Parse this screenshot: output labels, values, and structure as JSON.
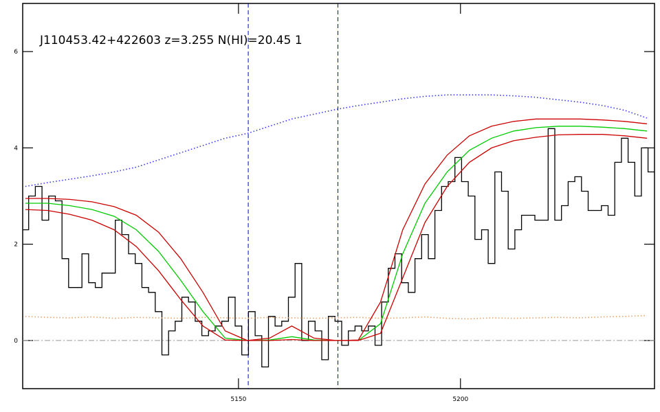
{
  "chart_data": {
    "type": "line",
    "title": "J110453.42+422603 z=3.255 N(HI)=20.45 1",
    "xlim": [
      5101.4,
      5243.7
    ],
    "ylim": [
      -1,
      7
    ],
    "xticks": [
      5150,
      5200
    ],
    "yticks": [
      0,
      2,
      4,
      6
    ],
    "vlines": [
      5152.2,
      5172.4
    ],
    "vline_color": "#0000cc",
    "hline": 0,
    "hline_color": "#999999",
    "series": [
      {
        "name": "flux",
        "color": "#000000",
        "style": "steps",
        "x": [
          5102.0,
          5103.5,
          5105.0,
          5106.5,
          5108.0,
          5109.5,
          5111.0,
          5112.5,
          5114.0,
          5115.5,
          5117.0,
          5118.5,
          5120.0,
          5121.5,
          5123.0,
          5124.5,
          5126.0,
          5127.5,
          5129.0,
          5130.5,
          5132.0,
          5133.5,
          5135.0,
          5136.5,
          5138.0,
          5139.5,
          5141.0,
          5142.5,
          5144.0,
          5145.5,
          5147.0,
          5148.5,
          5150.0,
          5151.5,
          5153.0,
          5154.5,
          5156.0,
          5157.5,
          5159.0,
          5160.5,
          5162.0,
          5163.5,
          5165.0,
          5166.5,
          5168.0,
          5169.5,
          5171.0,
          5172.5,
          5174.0,
          5175.5,
          5177.0,
          5178.5,
          5180.0,
          5181.5,
          5183.0,
          5184.5,
          5186.0,
          5187.5,
          5189.0,
          5190.5,
          5192.0,
          5193.5,
          5195.0,
          5196.5,
          5198.0,
          5199.5,
          5201.0,
          5202.5,
          5204.0,
          5205.5,
          5207.0,
          5208.5,
          5210.0,
          5211.5,
          5213.0,
          5214.5,
          5216.0,
          5217.5,
          5219.0,
          5220.5,
          5222.0,
          5223.5,
          5225.0,
          5226.5,
          5228.0,
          5229.5,
          5231.0,
          5232.5,
          5234.0,
          5235.5,
          5237.0,
          5238.5,
          5240.0,
          5241.5,
          5243.0
        ],
        "values": [
          2.3,
          3.0,
          3.2,
          2.5,
          3.0,
          2.9,
          1.7,
          1.1,
          1.1,
          1.8,
          1.2,
          1.1,
          1.4,
          1.4,
          2.5,
          2.2,
          1.8,
          1.6,
          1.1,
          1.0,
          0.6,
          -0.3,
          0.2,
          0.4,
          0.9,
          0.8,
          0.4,
          0.1,
          0.2,
          0.3,
          0.4,
          0.9,
          0.3,
          -0.3,
          0.6,
          0.1,
          -0.55,
          0.5,
          0.3,
          0.4,
          0.9,
          1.6,
          0.0,
          0.4,
          0.2,
          -0.4,
          0.5,
          0.4,
          -0.1,
          0.2,
          0.3,
          0.2,
          0.3,
          -0.1,
          0.8,
          1.5,
          1.8,
          1.2,
          1.0,
          1.7,
          2.2,
          1.7,
          2.7,
          3.2,
          3.3,
          3.8,
          3.3,
          3.0,
          2.1,
          2.3,
          1.6,
          3.5,
          3.1,
          1.9,
          2.3,
          2.6,
          2.6,
          2.5,
          2.5,
          4.4,
          2.5,
          2.8,
          3.3,
          3.4,
          3.1,
          2.7,
          2.7,
          2.8,
          2.6,
          3.7,
          4.2,
          3.7,
          3.0,
          4.0,
          3.5
        ]
      },
      {
        "name": "continuum",
        "color": "#3333ff",
        "style": "dotted",
        "x": [
          5102,
          5107,
          5112,
          5117,
          5122,
          5127,
          5132,
          5137,
          5142,
          5147,
          5152,
          5157,
          5162,
          5167,
          5172,
          5177,
          5182,
          5187,
          5192,
          5197,
          5202,
          5207,
          5212,
          5217,
          5222,
          5227,
          5232,
          5237,
          5242
        ],
        "values": [
          3.2,
          3.28,
          3.35,
          3.42,
          3.5,
          3.6,
          3.75,
          3.9,
          4.05,
          4.2,
          4.3,
          4.45,
          4.6,
          4.7,
          4.8,
          4.88,
          4.95,
          5.02,
          5.07,
          5.1,
          5.1,
          5.1,
          5.08,
          5.05,
          5.0,
          4.95,
          4.88,
          4.78,
          4.62
        ]
      },
      {
        "name": "error",
        "color": "#e8a060",
        "style": "dotted",
        "x": [
          5102,
          5107,
          5112,
          5117,
          5122,
          5127,
          5132,
          5137,
          5142,
          5147,
          5152,
          5157,
          5162,
          5167,
          5172,
          5177,
          5182,
          5187,
          5192,
          5197,
          5202,
          5207,
          5212,
          5217,
          5222,
          5227,
          5232,
          5237,
          5242
        ],
        "values": [
          0.5,
          0.48,
          0.47,
          0.49,
          0.46,
          0.48,
          0.47,
          0.46,
          0.48,
          0.47,
          0.46,
          0.48,
          0.47,
          0.46,
          0.47,
          0.48,
          0.46,
          0.47,
          0.49,
          0.46,
          0.45,
          0.47,
          0.46,
          0.47,
          0.48,
          0.47,
          0.49,
          0.5,
          0.52
        ]
      },
      {
        "name": "model",
        "color": "#00cc00",
        "style": "solid",
        "x": [
          5102,
          5107,
          5112,
          5117,
          5122,
          5127,
          5132,
          5137,
          5142,
          5147,
          5152,
          5157,
          5162,
          5167,
          5172,
          5177,
          5182,
          5187,
          5192,
          5197,
          5202,
          5207,
          5212,
          5217,
          5222,
          5227,
          5232,
          5237,
          5242
        ],
        "values": [
          2.85,
          2.85,
          2.8,
          2.72,
          2.58,
          2.3,
          1.85,
          1.25,
          0.6,
          0.05,
          0,
          0.01,
          0.08,
          0.01,
          0,
          0,
          0.35,
          1.8,
          2.85,
          3.5,
          3.95,
          4.2,
          4.35,
          4.42,
          4.45,
          4.45,
          4.43,
          4.4,
          4.35
        ]
      },
      {
        "name": "model upper",
        "color": "#cc0000",
        "style": "solid",
        "x": [
          5102,
          5107,
          5112,
          5117,
          5122,
          5127,
          5132,
          5137,
          5142,
          5147,
          5152,
          5157,
          5162,
          5167,
          5172,
          5177,
          5182,
          5187,
          5192,
          5197,
          5202,
          5207,
          5212,
          5217,
          5222,
          5227,
          5232,
          5237,
          5242
        ],
        "values": [
          2.95,
          2.95,
          2.93,
          2.88,
          2.78,
          2.6,
          2.25,
          1.7,
          1.0,
          0.2,
          0,
          0.05,
          0.3,
          0.05,
          0,
          0.01,
          0.8,
          2.3,
          3.25,
          3.85,
          4.25,
          4.45,
          4.55,
          4.6,
          4.6,
          4.6,
          4.58,
          4.55,
          4.5
        ]
      },
      {
        "name": "model lower",
        "color": "#cc0000",
        "style": "solid",
        "x": [
          5102,
          5107,
          5112,
          5117,
          5122,
          5127,
          5132,
          5137,
          5142,
          5147,
          5152,
          5157,
          5162,
          5167,
          5172,
          5177,
          5182,
          5187,
          5192,
          5197,
          5202,
          5207,
          5212,
          5217,
          5222,
          5227,
          5232,
          5237,
          5242
        ],
        "values": [
          2.72,
          2.7,
          2.62,
          2.5,
          2.3,
          1.95,
          1.45,
          0.85,
          0.3,
          0.01,
          0,
          0,
          0.02,
          0,
          0,
          0,
          0.15,
          1.3,
          2.45,
          3.2,
          3.7,
          4.0,
          4.15,
          4.22,
          4.27,
          4.28,
          4.28,
          4.25,
          4.2
        ]
      }
    ]
  }
}
